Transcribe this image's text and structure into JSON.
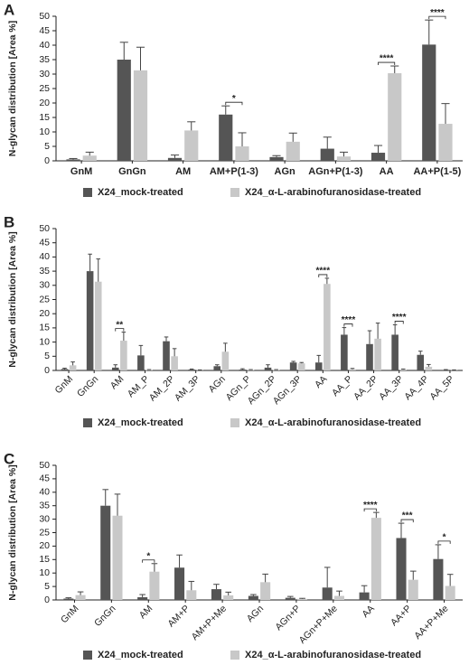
{
  "chart_data": [
    {
      "type": "bar",
      "panel": "A",
      "y_label": "N-glycan distribution [Area %]",
      "categories": [
        "GnM",
        "GnGn",
        "AM",
        "AM+P(1-3)",
        "AGn",
        "AGn+P(1-3)",
        "AA",
        "AA+P(1-5)"
      ],
      "series": [
        {
          "name": "X24_mock-treated",
          "color": "#555555",
          "values": [
            0.5,
            35,
            1,
            16,
            1.3,
            4.2,
            2.8,
            40.2
          ],
          "errors": [
            0.3,
            6,
            1,
            3,
            0.5,
            4,
            2.5,
            8.5
          ]
        },
        {
          "name": "X24_α-L-arabinofuranosidase-treated",
          "color": "#c8c8c8",
          "values": [
            1.8,
            31.3,
            10.5,
            5,
            6.6,
            1.5,
            30.3,
            12.8
          ],
          "errors": [
            1.2,
            8,
            3,
            4.7,
            3,
            1.5,
            2.5,
            7
          ]
        }
      ],
      "annotations": [
        {
          "category": "AM+P(1-3)",
          "text": "*"
        },
        {
          "category": "AA",
          "text": "****"
        },
        {
          "category": "AA+P(1-5)",
          "text": "****"
        }
      ],
      "ylim": [
        0,
        50
      ],
      "yticks": [
        0,
        5,
        10,
        15,
        20,
        25,
        30,
        35,
        40,
        45,
        50
      ],
      "grid": false
    },
    {
      "type": "bar",
      "panel": "B",
      "y_label": "N-glycan distribution [Area %]",
      "categories": [
        "GnM",
        "GnGn",
        "AM",
        "AM_P",
        "AM_2P",
        "AM_3P",
        "AGn",
        "AGn_P",
        "AGn_2P",
        "AGn_3P",
        "AA",
        "AA_P",
        "AA_2P",
        "AA_3P",
        "AA_4P",
        "AA_5P"
      ],
      "series": [
        {
          "name": "X24_mock-treated",
          "color": "#555555",
          "values": [
            0.5,
            35,
            1,
            5.3,
            10.3,
            0.3,
            1.5,
            0.3,
            1,
            2.8,
            2.8,
            12.6,
            9.3,
            12.6,
            5.5,
            0.2
          ],
          "errors": [
            0.3,
            6,
            1,
            3.5,
            1.5,
            0.2,
            0.5,
            0.3,
            1,
            0.4,
            2.5,
            2.5,
            4.7,
            3.5,
            1.3,
            0.1
          ]
        },
        {
          "name": "X24_α-L-arabinofuranosidase-treated",
          "color": "#c8c8c8",
          "values": [
            1.8,
            31.3,
            10.5,
            0.2,
            5,
            0.1,
            6.6,
            0.2,
            0.2,
            2.5,
            30.5,
            0.4,
            11.2,
            0.3,
            1.3,
            0.1
          ],
          "errors": [
            1.2,
            8,
            3,
            0.1,
            2.7,
            0.1,
            3,
            0.1,
            0.1,
            0.3,
            2,
            0.3,
            5.5,
            0.2,
            0.8,
            0.1
          ]
        }
      ],
      "annotations": [
        {
          "category": "AM",
          "text": "**"
        },
        {
          "category": "AA",
          "text": "****"
        },
        {
          "category": "AA_P",
          "text": "****"
        },
        {
          "category": "AA_3P",
          "text": "****"
        }
      ],
      "ylim": [
        0,
        50
      ],
      "yticks": [
        0,
        5,
        10,
        15,
        20,
        25,
        30,
        35,
        40,
        45,
        50
      ],
      "grid": false
    },
    {
      "type": "bar",
      "panel": "C",
      "y_label": "N-glycan distribution [Area %]",
      "categories": [
        "GnM",
        "GnGn",
        "AM",
        "AM+P",
        "AM+P+Me",
        "AGn",
        "AGn+P",
        "AGn+P+Me",
        "AA",
        "AA+P",
        "AA+P+Me"
      ],
      "series": [
        {
          "name": "X24_mock-treated",
          "color": "#555555",
          "values": [
            0.5,
            35,
            1,
            12,
            4,
            1.5,
            0.8,
            4.6,
            2.8,
            23,
            15.2
          ],
          "errors": [
            0.3,
            6,
            1,
            4.7,
            1.8,
            0.5,
            0.5,
            7.5,
            2.5,
            5.5,
            5.3
          ]
        },
        {
          "name": "X24_α-L-arabinofuranosidase-treated",
          "color": "#c8c8c8",
          "values": [
            1.8,
            31.3,
            10.5,
            3.6,
            1.7,
            6.6,
            0.4,
            1.5,
            30.5,
            7.5,
            5.2
          ],
          "errors": [
            1.2,
            8,
            3,
            3.3,
            1.2,
            3,
            0.2,
            1.8,
            2,
            3.2,
            4.3
          ]
        }
      ],
      "annotations": [
        {
          "category": "AM",
          "text": "*"
        },
        {
          "category": "AA",
          "text": "****"
        },
        {
          "category": "AA+P",
          "text": "***"
        },
        {
          "category": "AA+P+Me",
          "text": "*"
        }
      ],
      "ylim": [
        0,
        50
      ],
      "yticks": [
        0,
        5,
        10,
        15,
        20,
        25,
        30,
        35,
        40,
        45,
        50
      ],
      "grid": false
    }
  ]
}
